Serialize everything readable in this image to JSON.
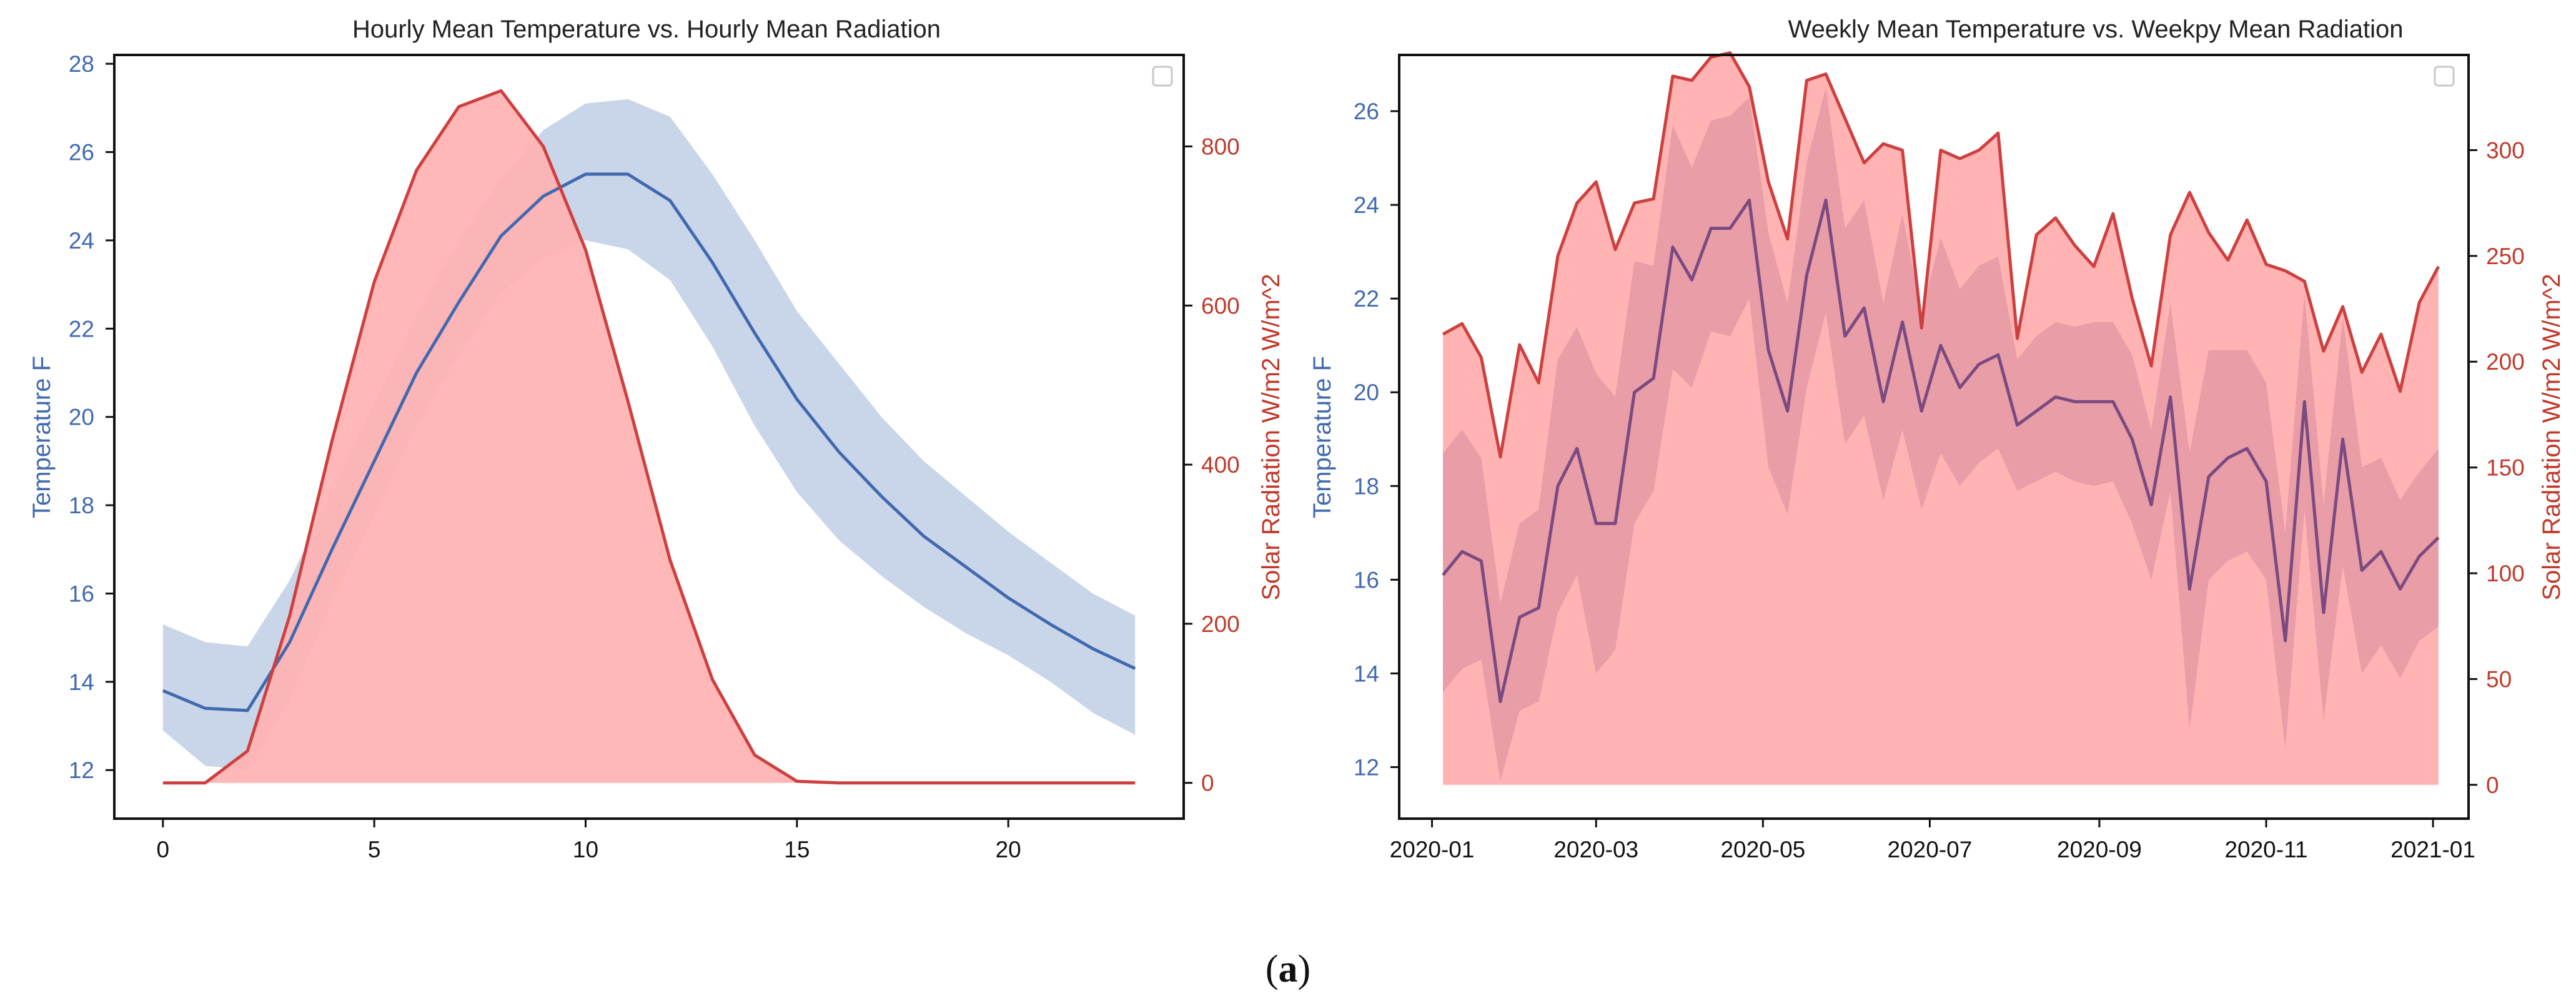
{
  "caption": {
    "open": "(",
    "letter": "a",
    "close": ")"
  },
  "chart_data": [
    {
      "type": "line",
      "title": "Hourly Mean Temperature vs. Hourly Mean Radiation",
      "xlabel": "",
      "ylabel": "Temperature F",
      "y2label": "Solar Radiation W/m2 W/m^2",
      "xlim": [
        -1.15,
        24.15
      ],
      "ylim": [
        10.9,
        28.2
      ],
      "y2lim": [
        -45,
        915
      ],
      "xticks": [
        0,
        5,
        10,
        15,
        20
      ],
      "yticks": [
        12,
        14,
        16,
        18,
        20,
        22,
        24,
        26,
        28
      ],
      "y2ticks": [
        0,
        200,
        400,
        600,
        800
      ],
      "grid": false,
      "legend": "empty, top-right",
      "colors": {
        "temperature": "#4169b0",
        "temperature_band": "#c9d5e8",
        "radiation": "#cd4040",
        "radiation_fill": "#ffb3b3"
      },
      "x": [
        0,
        1,
        2,
        3,
        4,
        5,
        6,
        7,
        8,
        9,
        10,
        11,
        12,
        13,
        14,
        15,
        16,
        17,
        18,
        19,
        20,
        21,
        22,
        23
      ],
      "series": [
        {
          "axis": "left",
          "values": [
            13.8,
            13.4,
            13.35,
            14.9,
            17.0,
            19.0,
            21.0,
            22.6,
            24.1,
            25.0,
            25.5,
            25.5,
            24.9,
            23.5,
            21.9,
            20.4,
            19.2,
            18.2,
            17.3,
            16.6,
            15.9,
            15.3,
            14.75,
            14.3
          ],
          "lower": [
            12.9,
            12.1,
            12.0,
            13.6,
            15.8,
            17.8,
            19.8,
            21.4,
            22.8,
            23.6,
            24.0,
            23.8,
            23.1,
            21.6,
            19.8,
            18.3,
            17.2,
            16.4,
            15.7,
            15.1,
            14.6,
            14.0,
            13.3,
            12.8
          ],
          "upper": [
            15.3,
            14.9,
            14.8,
            16.3,
            18.3,
            20.3,
            22.3,
            24.0,
            25.4,
            26.5,
            27.1,
            27.2,
            26.8,
            25.5,
            24.0,
            22.4,
            21.2,
            20.0,
            19.0,
            18.2,
            17.4,
            16.7,
            16.0,
            15.5
          ]
        },
        {
          "axis": "right",
          "values": [
            0,
            0,
            40,
            210,
            430,
            630,
            770,
            850,
            870,
            800,
            670,
            480,
            280,
            130,
            35,
            2,
            0,
            0,
            0,
            0,
            0,
            0,
            0,
            0
          ]
        }
      ]
    },
    {
      "type": "line",
      "title": "Weekly Mean Temperature vs. Weekpy Mean Radiation",
      "xlabel": "",
      "ylabel": "Temperature F",
      "y2label": "Solar Radiation W/m2 W/m^2",
      "xlim": [
        "2019-12-20",
        "2021-01-14"
      ],
      "ylim": [
        10.9,
        27.2
      ],
      "y2lim": [
        -16,
        345
      ],
      "xticks": [
        "2020-01",
        "2020-03",
        "2020-05",
        "2020-07",
        "2020-09",
        "2020-11",
        "2021-01"
      ],
      "yticks": [
        12,
        14,
        16,
        18,
        20,
        22,
        24,
        26
      ],
      "y2ticks": [
        0,
        50,
        100,
        150,
        200,
        250,
        300
      ],
      "grid": false,
      "legend": "empty, top-right",
      "colors": {
        "temperature": "#7b4a80",
        "temperature_band": "#d58a9c",
        "radiation": "#cd4040",
        "radiation_fill": "#ffb3b3"
      },
      "x": [
        "2020-01-05",
        "2020-01-12",
        "2020-01-19",
        "2020-01-26",
        "2020-02-02",
        "2020-02-09",
        "2020-02-16",
        "2020-02-23",
        "2020-03-01",
        "2020-03-08",
        "2020-03-15",
        "2020-03-22",
        "2020-03-29",
        "2020-04-05",
        "2020-04-12",
        "2020-04-19",
        "2020-04-26",
        "2020-05-03",
        "2020-05-10",
        "2020-05-17",
        "2020-05-24",
        "2020-05-31",
        "2020-06-07",
        "2020-06-14",
        "2020-06-21",
        "2020-06-28",
        "2020-07-05",
        "2020-07-12",
        "2020-07-19",
        "2020-07-26",
        "2020-08-02",
        "2020-08-09",
        "2020-08-16",
        "2020-08-23",
        "2020-08-30",
        "2020-09-06",
        "2020-09-13",
        "2020-09-20",
        "2020-09-27",
        "2020-10-04",
        "2020-10-11",
        "2020-10-18",
        "2020-10-25",
        "2020-11-01",
        "2020-11-08",
        "2020-11-15",
        "2020-11-22",
        "2020-11-29",
        "2020-12-06",
        "2020-12-13",
        "2020-12-20",
        "2020-12-27",
        "2021-01-03"
      ],
      "series": [
        {
          "axis": "left",
          "values": [
            16.1,
            16.6,
            16.4,
            13.4,
            15.2,
            15.4,
            18.0,
            18.8,
            17.2,
            17.2,
            20.0,
            20.3,
            23.1,
            22.4,
            23.5,
            23.5,
            24.1,
            20.9,
            19.6,
            22.5,
            24.1,
            21.2,
            21.8,
            19.8,
            21.5,
            19.6,
            21.0,
            20.1,
            20.6,
            20.8,
            19.3,
            19.6,
            19.9,
            19.8,
            19.8,
            19.8,
            19.0,
            17.6,
            19.9,
            15.8,
            18.2,
            18.6,
            18.8,
            18.1,
            14.7,
            19.8,
            15.3,
            19.0,
            16.2,
            16.6,
            15.8,
            16.5,
            16.9
          ],
          "lower": [
            13.6,
            14.1,
            14.3,
            11.7,
            13.2,
            13.4,
            15.3,
            16.1,
            14.0,
            14.5,
            17.2,
            17.9,
            20.5,
            20.1,
            21.3,
            21.2,
            22.0,
            18.4,
            17.4,
            20.1,
            21.7,
            18.9,
            19.5,
            17.7,
            19.2,
            17.5,
            18.7,
            18.0,
            18.5,
            18.8,
            17.9,
            18.1,
            18.3,
            18.1,
            18.0,
            18.1,
            17.2,
            16.0,
            17.9,
            12.8,
            16.0,
            16.4,
            16.6,
            16.0,
            12.4,
            17.5,
            13.0,
            16.3,
            14.0,
            14.6,
            13.9,
            14.7,
            15.0
          ],
          "upper": [
            18.7,
            19.2,
            18.6,
            15.5,
            17.2,
            17.5,
            20.7,
            21.4,
            20.4,
            19.9,
            22.8,
            22.7,
            25.7,
            24.8,
            25.8,
            25.9,
            26.3,
            23.4,
            21.9,
            24.9,
            26.5,
            23.5,
            24.1,
            21.9,
            23.8,
            21.7,
            23.3,
            22.2,
            22.7,
            22.9,
            20.7,
            21.2,
            21.5,
            21.4,
            21.5,
            21.5,
            20.8,
            19.2,
            21.9,
            18.7,
            20.9,
            20.9,
            20.9,
            20.2,
            17.0,
            22.1,
            17.6,
            21.6,
            18.4,
            18.6,
            17.7,
            18.3,
            18.8
          ]
        },
        {
          "axis": "right",
          "values": [
            213,
            218,
            202,
            155,
            208,
            190,
            250,
            275,
            285,
            253,
            275,
            277,
            335,
            333,
            344,
            346,
            330,
            285,
            258,
            333,
            336,
            315,
            294,
            303,
            300,
            216,
            300,
            296,
            300,
            308,
            211,
            260,
            268,
            255,
            245,
            270,
            230,
            198,
            260,
            280,
            261,
            248,
            267,
            246,
            243,
            238,
            205,
            226,
            195,
            213,
            186,
            228,
            245
          ]
        }
      ]
    }
  ]
}
